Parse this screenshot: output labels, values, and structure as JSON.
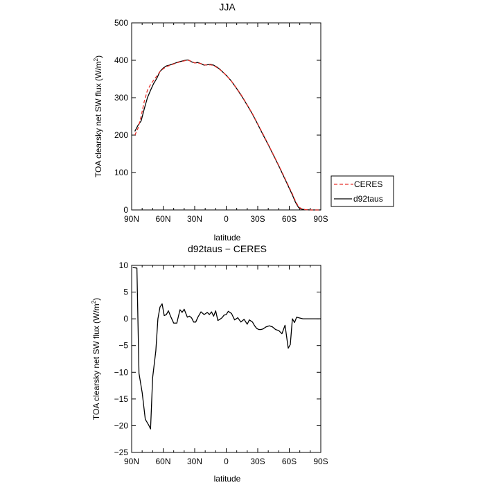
{
  "chart_data": [
    {
      "type": "line",
      "title": "JJA",
      "xlabel": "latitude",
      "ylabel": "TOA clearsky net SW flux (W/m",
      "ylabel_sup": "2",
      "ylabel_tail": ")",
      "xlim": [
        90,
        -90
      ],
      "ylim": [
        0,
        500
      ],
      "x_ticks": [
        90,
        60,
        30,
        0,
        -30,
        -60,
        -90
      ],
      "x_tick_labels": [
        "90N",
        "60N",
        "30N",
        "0",
        "30S",
        "60S",
        "90S"
      ],
      "y_ticks": [
        0,
        100,
        200,
        300,
        400,
        500
      ],
      "y_tick_labels": [
        "0",
        "100",
        "200",
        "300",
        "400",
        "500"
      ],
      "legend_position": "right, outside plot area",
      "series": [
        {
          "name": "CERES",
          "color": "#e8302a",
          "dash": "dashed",
          "x": [
            87,
            84,
            81,
            78,
            75,
            72,
            69,
            66,
            63,
            60,
            57,
            54,
            51,
            48,
            45,
            42,
            39,
            36,
            33,
            30,
            27,
            24,
            21,
            18,
            15,
            12,
            9,
            6,
            3,
            0,
            -5,
            -10,
            -15,
            -20,
            -25,
            -30,
            -35,
            -40,
            -45,
            -50,
            -55,
            -60,
            -63,
            -66,
            -69,
            -72,
            -75,
            -80,
            -85,
            -90
          ],
          "y": [
            200,
            218,
            250,
            290,
            320,
            335,
            347,
            358,
            370,
            377,
            383,
            386,
            389,
            392,
            395,
            397,
            399,
            400,
            397,
            393,
            393,
            391,
            388,
            387,
            388,
            386,
            381,
            375,
            368,
            360,
            344,
            325,
            304,
            281,
            257,
            230,
            203,
            175,
            147,
            119,
            90,
            60,
            43,
            23,
            8,
            3,
            1,
            0,
            0,
            0
          ]
        },
        {
          "name": "d92taus",
          "color": "#000000",
          "dash": "solid",
          "x": [
            87,
            84,
            81,
            78,
            75,
            72,
            69,
            66,
            63,
            60,
            57,
            54,
            51,
            48,
            45,
            42,
            39,
            36,
            33,
            30,
            27,
            24,
            21,
            18,
            15,
            12,
            9,
            6,
            3,
            0,
            -5,
            -10,
            -15,
            -20,
            -25,
            -30,
            -35,
            -40,
            -45,
            -50,
            -55,
            -60,
            -63,
            -66,
            -69,
            -72,
            -75,
            -80,
            -85,
            -90
          ],
          "y": [
            210,
            226,
            238,
            270,
            300,
            320,
            338,
            352,
            370,
            379,
            385,
            387,
            390,
            393,
            396,
            398,
            400,
            401,
            396,
            393,
            394,
            391,
            387,
            388,
            389,
            387,
            382,
            376,
            368,
            360,
            344,
            324,
            303,
            280,
            256,
            229,
            201,
            174,
            146,
            118,
            88,
            58,
            40,
            20,
            6,
            2,
            0.5,
            0,
            0,
            0
          ]
        }
      ]
    },
    {
      "type": "line",
      "title": "d92taus − CERES",
      "xlabel": "latitude",
      "ylabel": "TOA clearsky net SW flux (W/m",
      "ylabel_sup": "2",
      "ylabel_tail": ")",
      "xlim": [
        90,
        -90
      ],
      "ylim": [
        -25,
        10
      ],
      "x_ticks": [
        90,
        60,
        30,
        0,
        -30,
        -60,
        -90
      ],
      "x_tick_labels": [
        "90N",
        "60N",
        "30N",
        "0",
        "30S",
        "60S",
        "90S"
      ],
      "y_ticks": [
        10,
        5,
        0,
        -5,
        -10,
        -15,
        -20,
        -25
      ],
      "y_tick_labels": [
        "10",
        "5",
        "0",
        "−5",
        "−10",
        "−15",
        "−20",
        "−25"
      ],
      "series": [
        {
          "color": "#000000",
          "x": [
            89,
            85,
            83,
            80,
            77,
            74,
            72,
            70,
            67,
            65,
            63,
            61,
            59,
            57,
            55,
            53,
            50,
            47,
            44,
            42,
            40,
            37,
            35,
            33,
            31,
            29,
            27,
            24,
            21,
            18,
            16,
            14,
            12,
            10,
            8,
            6,
            4,
            2,
            0,
            -2,
            -5,
            -8,
            -11,
            -14,
            -17,
            -20,
            -22,
            -25,
            -27,
            -29,
            -31,
            -33,
            -35,
            -38,
            -41,
            -44,
            -47,
            -50,
            -53,
            -56,
            -59,
            -61,
            -63,
            -65,
            -67,
            -69,
            -71,
            -73,
            -76,
            -80,
            -85,
            -90
          ],
          "y": [
            9.6,
            9.5,
            -10.2,
            -13.8,
            -18.8,
            -19.8,
            -20.6,
            -11,
            -6,
            0,
            2.2,
            2.8,
            0.6,
            0.8,
            1.5,
            0.5,
            -0.8,
            -0.8,
            1.7,
            1.2,
            1.8,
            0.3,
            0.5,
            0.2,
            -0.6,
            -0.6,
            0.3,
            1.3,
            0.8,
            1.2,
            0.8,
            1.3,
            0.5,
            1.5,
            -0.3,
            -0.1,
            0.2,
            0.7,
            0.8,
            1.4,
            1.0,
            -0.2,
            0.2,
            -0.6,
            -0.1,
            -1.0,
            -0.2,
            -0.6,
            -1.3,
            -1.8,
            -2.0,
            -2.0,
            -1.9,
            -1.5,
            -1.3,
            -1.5,
            -2.0,
            -2.2,
            -2.8,
            -1.2,
            -5.5,
            -4.8,
            0,
            -0.7,
            0.3,
            0.2,
            0.1,
            0,
            0,
            0,
            0,
            0
          ]
        }
      ]
    }
  ]
}
